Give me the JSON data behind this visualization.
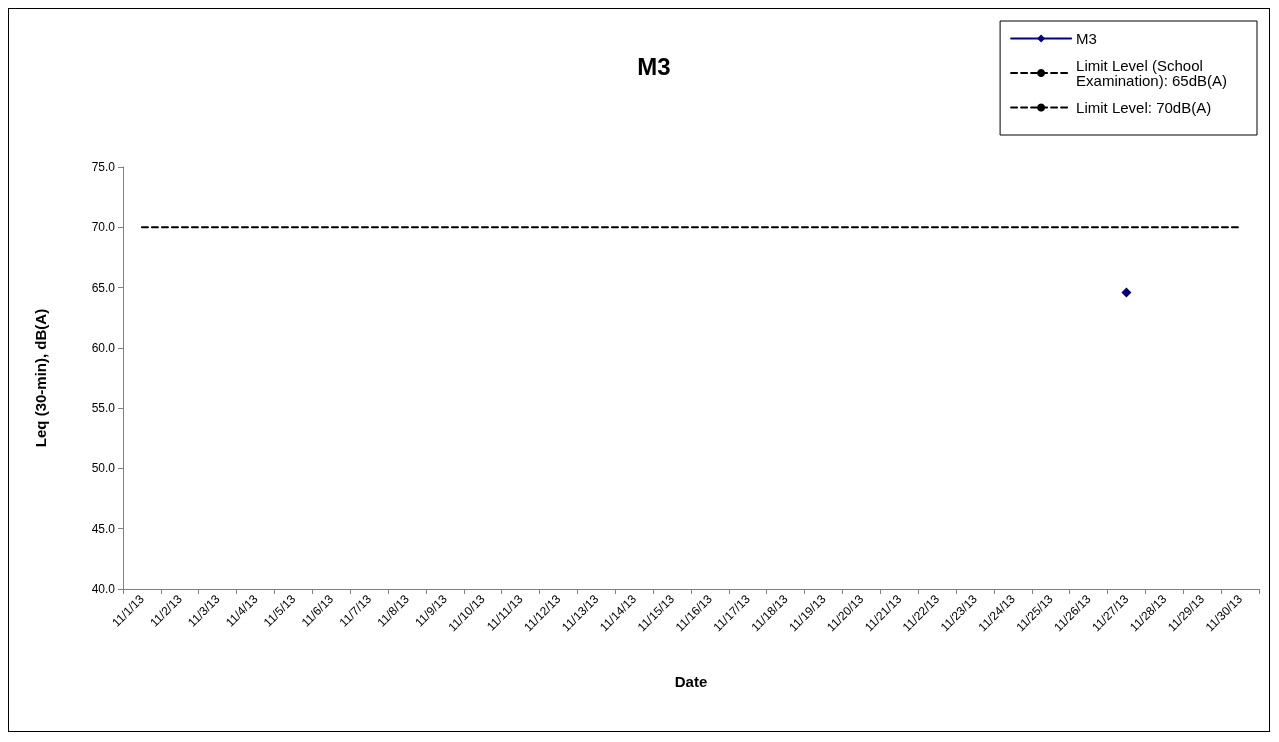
{
  "chart_data": {
    "type": "line",
    "title": "M3",
    "xlabel": "Date",
    "ylabel": "Leq (30-min), dB(A)",
    "categories": [
      "11/1/13",
      "11/2/13",
      "11/3/13",
      "11/4/13",
      "11/5/13",
      "11/6/13",
      "11/7/13",
      "11/8/13",
      "11/9/13",
      "11/10/13",
      "11/11/13",
      "11/12/13",
      "11/13/13",
      "11/14/13",
      "11/15/13",
      "11/16/13",
      "11/17/13",
      "11/18/13",
      "11/19/13",
      "11/20/13",
      "11/21/13",
      "11/22/13",
      "11/23/13",
      "11/24/13",
      "11/25/13",
      "11/26/13",
      "11/27/13",
      "11/28/13",
      "11/29/13",
      "11/30/13"
    ],
    "series": [
      {
        "name": "M3",
        "color": "#000080",
        "marker": "diamond",
        "line_style": "solid",
        "values": [
          null,
          null,
          null,
          null,
          null,
          null,
          null,
          null,
          null,
          null,
          null,
          null,
          null,
          null,
          null,
          null,
          null,
          null,
          null,
          null,
          null,
          null,
          null,
          null,
          null,
          null,
          64.6,
          null,
          null,
          null
        ]
      },
      {
        "name": "Limit Level (School Examination): 65dB(A)",
        "color": "#000000",
        "marker": "none",
        "line_style": "dashed",
        "values": [
          null,
          null,
          null,
          null,
          null,
          null,
          null,
          null,
          null,
          null,
          null,
          null,
          null,
          null,
          null,
          null,
          null,
          null,
          null,
          null,
          null,
          null,
          null,
          null,
          null,
          null,
          null,
          null,
          null,
          null
        ]
      },
      {
        "name": "Limit Level: 70dB(A)",
        "color": "#000000",
        "marker": "none",
        "line_style": "dashed",
        "values": [
          70,
          70,
          70,
          70,
          70,
          70,
          70,
          70,
          70,
          70,
          70,
          70,
          70,
          70,
          70,
          70,
          70,
          70,
          70,
          70,
          70,
          70,
          70,
          70,
          70,
          70,
          70,
          70,
          70,
          70
        ]
      }
    ],
    "ylim": [
      40,
      75
    ],
    "yticks": [
      {
        "value": 40,
        "label": "40.0"
      },
      {
        "value": 45,
        "label": "45.0"
      },
      {
        "value": 50,
        "label": "50.0"
      },
      {
        "value": 55,
        "label": "55.0"
      },
      {
        "value": 60,
        "label": "60.0"
      },
      {
        "value": 65,
        "label": "65.0"
      },
      {
        "value": 70,
        "label": "70.0"
      },
      {
        "value": 75,
        "label": "75.0"
      }
    ],
    "grid": false,
    "legend": "top right"
  }
}
